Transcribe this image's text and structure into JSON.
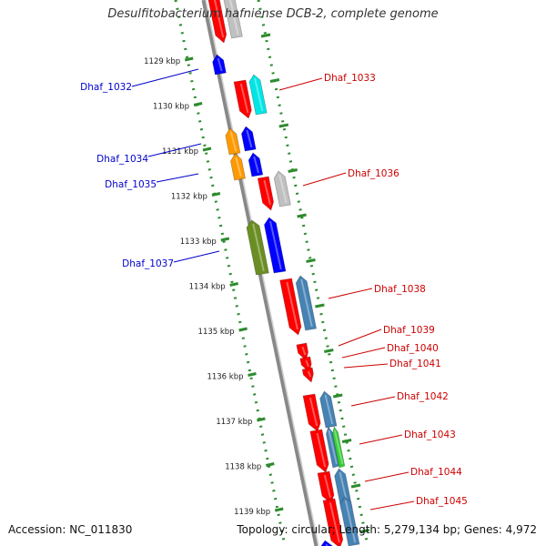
{
  "title": "Desulfitobacterium hafniense DCB-2, complete genome",
  "footer": {
    "accession": "Accession: NC_011830",
    "summary": "Topology: circular; Length: 5,279,134 bp; Genes: 4,972"
  },
  "kbp_labels": [
    "1129 kbp",
    "1130 kbp",
    "1131 kbp",
    "1132 kbp",
    "1133 kbp",
    "1134 kbp",
    "1135 kbp",
    "1136 kbp",
    "1137 kbp",
    "1138 kbp",
    "1139 kbp"
  ],
  "genes_minus_strand": [
    {
      "label": "Dhaf_1032",
      "color": "#0000cc"
    },
    {
      "label": "Dhaf_1034",
      "color": "#0000cc"
    },
    {
      "label": "Dhaf_1035",
      "color": "#0000cc"
    },
    {
      "label": "Dhaf_1037",
      "color": "#0000cc"
    }
  ],
  "genes_plus_strand": [
    {
      "label": "Dhaf_1033",
      "color": "#cc0000"
    },
    {
      "label": "Dhaf_1036",
      "color": "#cc0000"
    },
    {
      "label": "Dhaf_1038",
      "color": "#cc0000"
    },
    {
      "label": "Dhaf_1039",
      "color": "#cc0000"
    },
    {
      "label": "Dhaf_1040",
      "color": "#cc0000"
    },
    {
      "label": "Dhaf_1041",
      "color": "#cc0000"
    },
    {
      "label": "Dhaf_1042",
      "color": "#cc0000"
    },
    {
      "label": "Dhaf_1043",
      "color": "#cc0000"
    },
    {
      "label": "Dhaf_1044",
      "color": "#cc0000"
    },
    {
      "label": "Dhaf_1045",
      "color": "#cc0000"
    }
  ],
  "colors": {
    "backbone": "#888888",
    "ruler": "#2e8b2e",
    "gene_red": "#ff0000",
    "gene_blue": "#0000ff",
    "gene_orange": "#ff9900",
    "gene_olive": "#6b8e23",
    "gene_cyan": "#00e5e5",
    "gene_grey": "#c0c0c0",
    "gene_steel": "#4682b4",
    "gene_green": "#33cc33"
  }
}
